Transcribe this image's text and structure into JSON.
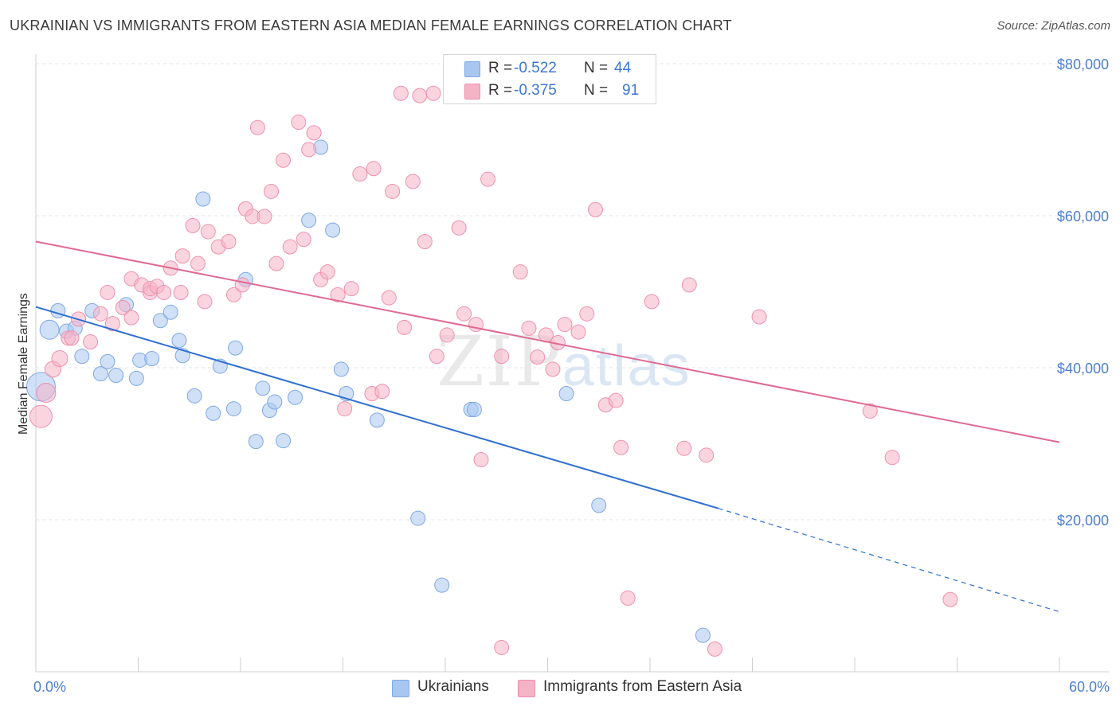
{
  "title": "UKRAINIAN VS IMMIGRANTS FROM EASTERN ASIA MEDIAN FEMALE EARNINGS CORRELATION CHART",
  "source": "Source: ZipAtlas.com",
  "watermark": {
    "zip": "ZIP",
    "atlas": "atlas"
  },
  "legend": {
    "rows": [
      {
        "r_label": "R =",
        "r_value": "-0.522",
        "n_label": "N =",
        "n_value": "44",
        "color": "#a8c6f0"
      },
      {
        "r_label": "R =",
        "r_value": "-0.375",
        "n_label": "N =",
        "n_value": "91",
        "color": "#f5b3c6"
      }
    ]
  },
  "bottom_legend": [
    "Ukrainians",
    "Immigrants from Eastern Asia"
  ],
  "chart_data": {
    "type": "scatter",
    "title": "UKRAINIAN VS IMMIGRANTS FROM EASTERN ASIA MEDIAN FEMALE EARNINGS CORRELATION CHART",
    "xlabel": "",
    "ylabel": "Median Female Earnings",
    "xlim": [
      0,
      60
    ],
    "ylim": [
      0,
      80000
    ],
    "x_tick_labels": [
      "0.0%",
      "60.0%"
    ],
    "y_ticks": [
      20000,
      40000,
      60000,
      80000
    ],
    "y_tick_labels": [
      "$20,000",
      "$40,000",
      "$60,000",
      "$80,000"
    ],
    "grid": true,
    "legend_position": "top-center",
    "series": [
      {
        "name": "Ukrainians",
        "color": "#a8c6f0",
        "line_color": "#2f6fd1",
        "trend": {
          "x0": 0,
          "y0": 48000,
          "x1": 40,
          "y1": 21500,
          "dashed_to_x": 60,
          "dashed_to_y": 7900
        },
        "points": [
          [
            0.3,
            37500,
            18
          ],
          [
            0.8,
            45000,
            12
          ],
          [
            1.3,
            47500,
            9
          ],
          [
            1.8,
            44800,
            9
          ],
          [
            2.3,
            45200,
            9
          ],
          [
            2.7,
            41500,
            9
          ],
          [
            3.3,
            47500,
            9
          ],
          [
            3.8,
            39200,
            9
          ],
          [
            4.2,
            40800,
            9
          ],
          [
            4.7,
            39000,
            9
          ],
          [
            5.3,
            48300,
            9
          ],
          [
            5.9,
            38600,
            9
          ],
          [
            6.1,
            41000,
            9
          ],
          [
            6.8,
            41200,
            9
          ],
          [
            7.3,
            46200,
            9
          ],
          [
            7.9,
            47300,
            9
          ],
          [
            8.4,
            43600,
            9
          ],
          [
            8.6,
            41600,
            9
          ],
          [
            9.3,
            36300,
            9
          ],
          [
            9.8,
            62200,
            9
          ],
          [
            10.4,
            34000,
            9
          ],
          [
            10.8,
            40200,
            9
          ],
          [
            11.6,
            34600,
            9
          ],
          [
            11.7,
            42600,
            9
          ],
          [
            12.3,
            51600,
            9
          ],
          [
            12.9,
            30300,
            9
          ],
          [
            13.3,
            37300,
            9
          ],
          [
            13.7,
            34400,
            9
          ],
          [
            14.0,
            35500,
            9
          ],
          [
            14.5,
            30400,
            9
          ],
          [
            15.2,
            36100,
            9
          ],
          [
            16.0,
            59400,
            9
          ],
          [
            16.7,
            69000,
            9
          ],
          [
            17.4,
            58100,
            9
          ],
          [
            17.9,
            39800,
            9
          ],
          [
            18.2,
            36600,
            9
          ],
          [
            20.0,
            33100,
            9
          ],
          [
            22.4,
            20200,
            9
          ],
          [
            23.8,
            11400,
            9
          ],
          [
            25.5,
            34500,
            9
          ],
          [
            25.7,
            34500,
            9
          ],
          [
            31.1,
            36600,
            9
          ],
          [
            33.0,
            21900,
            9
          ],
          [
            39.1,
            4800,
            9
          ]
        ]
      },
      {
        "name": "Immigrants from Eastern Asia",
        "color": "#f5b3c6",
        "line_color": "#e06a92",
        "trend": {
          "x0": 0,
          "y0": 56600,
          "x1": 60,
          "y1": 30200
        },
        "points": [
          [
            0.3,
            33600,
            14
          ],
          [
            0.6,
            36700,
            12
          ],
          [
            1.0,
            39800,
            10
          ],
          [
            1.4,
            41200,
            10
          ],
          [
            1.9,
            43900,
            9
          ],
          [
            2.1,
            43900,
            9
          ],
          [
            2.5,
            46400,
            9
          ],
          [
            3.2,
            43400,
            9
          ],
          [
            3.8,
            47100,
            9
          ],
          [
            4.2,
            49900,
            9
          ],
          [
            4.5,
            45800,
            9
          ],
          [
            5.1,
            47900,
            9
          ],
          [
            5.6,
            51700,
            9
          ],
          [
            5.6,
            46600,
            9
          ],
          [
            6.2,
            50900,
            9
          ],
          [
            6.7,
            49900,
            9
          ],
          [
            6.7,
            50400,
            9
          ],
          [
            7.1,
            50700,
            9
          ],
          [
            7.5,
            49900,
            9
          ],
          [
            7.9,
            53100,
            9
          ],
          [
            8.5,
            49900,
            9
          ],
          [
            8.6,
            54700,
            9
          ],
          [
            9.2,
            58700,
            9
          ],
          [
            9.5,
            53700,
            9
          ],
          [
            9.9,
            48700,
            9
          ],
          [
            10.1,
            57900,
            9
          ],
          [
            10.7,
            55900,
            9
          ],
          [
            11.3,
            56600,
            9
          ],
          [
            11.6,
            49600,
            9
          ],
          [
            12.1,
            50900,
            9
          ],
          [
            12.3,
            60900,
            9
          ],
          [
            12.7,
            59900,
            9
          ],
          [
            13.0,
            71600,
            9
          ],
          [
            13.4,
            59900,
            9
          ],
          [
            13.8,
            63200,
            9
          ],
          [
            14.1,
            53700,
            9
          ],
          [
            14.5,
            67300,
            9
          ],
          [
            14.9,
            55900,
            9
          ],
          [
            15.4,
            72300,
            9
          ],
          [
            15.7,
            56900,
            9
          ],
          [
            16.0,
            68700,
            9
          ],
          [
            16.3,
            70900,
            9
          ],
          [
            16.7,
            51600,
            9
          ],
          [
            17.1,
            52600,
            9
          ],
          [
            17.7,
            49600,
            9
          ],
          [
            18.1,
            34600,
            9
          ],
          [
            18.5,
            50400,
            9
          ],
          [
            19.0,
            65500,
            9
          ],
          [
            19.7,
            36600,
            9
          ],
          [
            19.8,
            66200,
            9
          ],
          [
            20.3,
            36900,
            9
          ],
          [
            20.7,
            49200,
            9
          ],
          [
            20.9,
            63200,
            9
          ],
          [
            21.4,
            76100,
            9
          ],
          [
            21.6,
            45300,
            9
          ],
          [
            22.1,
            64500,
            9
          ],
          [
            22.5,
            75800,
            9
          ],
          [
            22.8,
            56600,
            9
          ],
          [
            23.3,
            76100,
            9
          ],
          [
            23.5,
            41500,
            9
          ],
          [
            24.1,
            44300,
            9
          ],
          [
            24.8,
            58400,
            9
          ],
          [
            25.1,
            47100,
            9
          ],
          [
            25.8,
            45700,
            9
          ],
          [
            26.1,
            27900,
            9
          ],
          [
            26.5,
            64800,
            9
          ],
          [
            27.3,
            41500,
            9
          ],
          [
            27.3,
            3200,
            9
          ],
          [
            28.4,
            52600,
            9
          ],
          [
            28.9,
            45200,
            9
          ],
          [
            29.4,
            41400,
            9
          ],
          [
            29.9,
            44300,
            9
          ],
          [
            30.3,
            39800,
            9
          ],
          [
            30.6,
            43300,
            9
          ],
          [
            31.0,
            45700,
            9
          ],
          [
            31.8,
            44700,
            9
          ],
          [
            32.3,
            47100,
            9
          ],
          [
            32.8,
            60800,
            9
          ],
          [
            33.4,
            35100,
            9
          ],
          [
            34.0,
            35700,
            9
          ],
          [
            34.3,
            29500,
            9
          ],
          [
            34.7,
            9700,
            9
          ],
          [
            36.1,
            48700,
            9
          ],
          [
            38.0,
            29400,
            9
          ],
          [
            38.3,
            50900,
            9
          ],
          [
            39.3,
            28500,
            9
          ],
          [
            39.8,
            3000,
            9
          ],
          [
            42.4,
            46700,
            9
          ],
          [
            48.9,
            34300,
            9
          ],
          [
            50.2,
            28200,
            9
          ],
          [
            53.6,
            9500,
            9
          ]
        ]
      }
    ]
  }
}
